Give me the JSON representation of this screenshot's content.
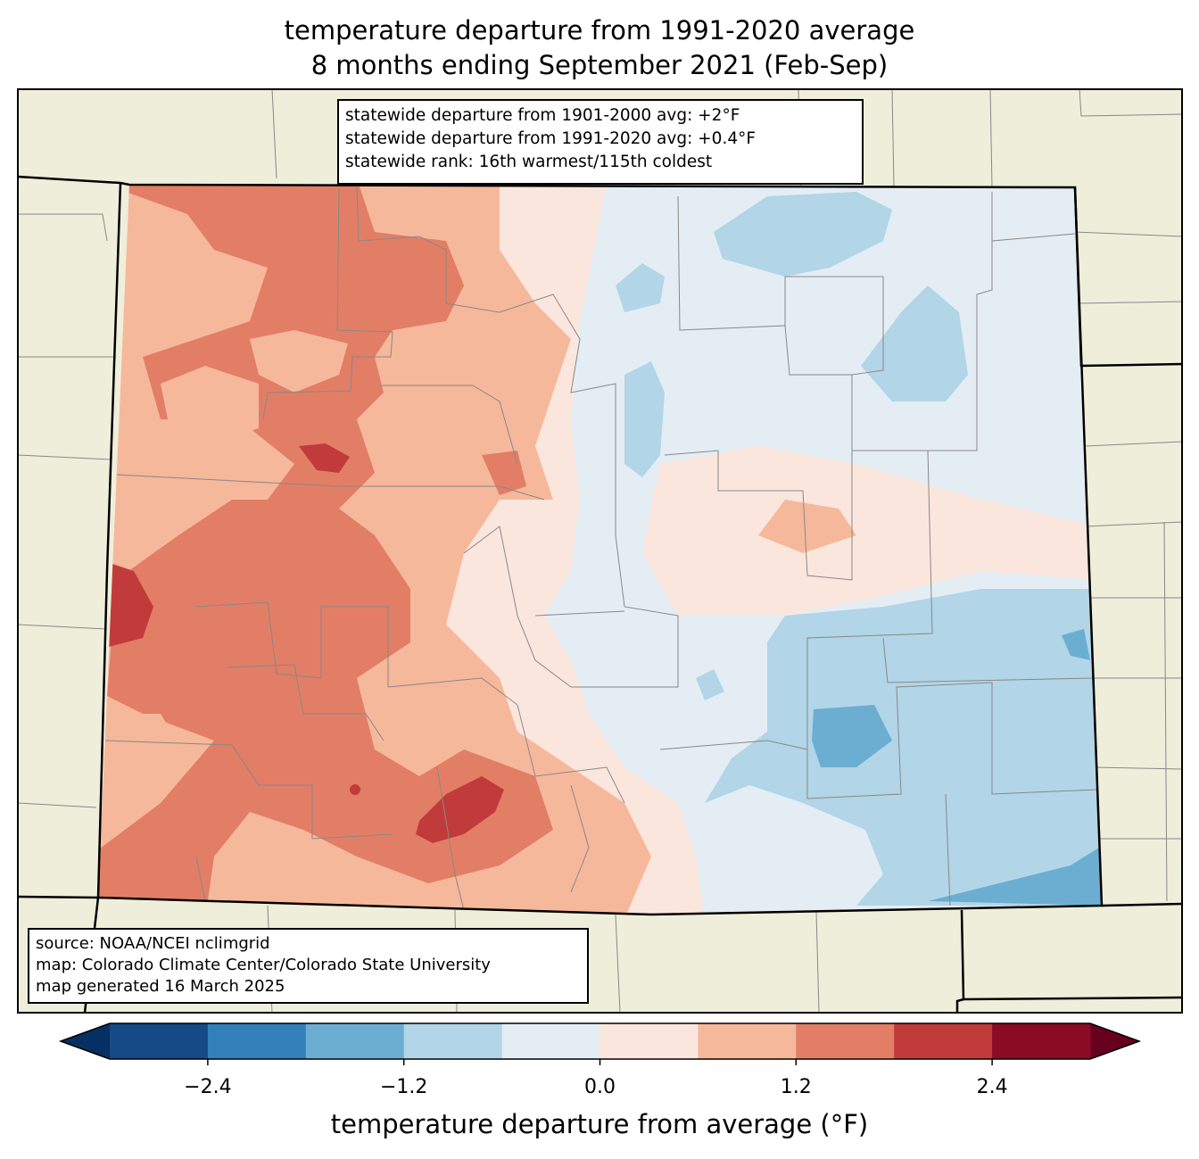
{
  "title": {
    "line1": "temperature departure from 1991-2020 average",
    "line2": "8 months ending September 2021 (Feb-Sep)"
  },
  "stats": {
    "line1": "statewide departure from 1901-2000 avg: +2°F",
    "line2": "statewide departure from 1991-2020 avg: +0.4°F",
    "line3": "statewide rank: 16th warmest/115th coldest"
  },
  "source": {
    "line1": "source: NOAA/NCEI nclimgrid",
    "line2": "map: Colorado Climate Center/Colorado State University",
    "line3": "map generated 16 March 2025"
  },
  "colorbar": {
    "label": "temperature departure from average (°F)",
    "ticks": [
      "−2.4",
      "−1.2",
      "0.0",
      "1.2",
      "2.4"
    ],
    "tick_values": [
      -2.4,
      -1.2,
      0.0,
      1.2,
      2.4
    ],
    "bounds": [
      -3.0,
      -2.4,
      -1.8,
      -1.2,
      -0.6,
      0.0,
      0.6,
      1.2,
      1.8,
      2.4,
      3.0
    ],
    "colors": [
      "#144a86",
      "#3180ba",
      "#6baed2",
      "#b2d5e7",
      "#e4edf4",
      "#fbe6dd",
      "#f6b89b",
      "#e27e66",
      "#c13b3b",
      "#8c0c25"
    ],
    "under_color": "#053061",
    "over_color": "#67001f"
  },
  "map": {
    "land_color": "#efeedb",
    "state": "Colorado"
  }
}
